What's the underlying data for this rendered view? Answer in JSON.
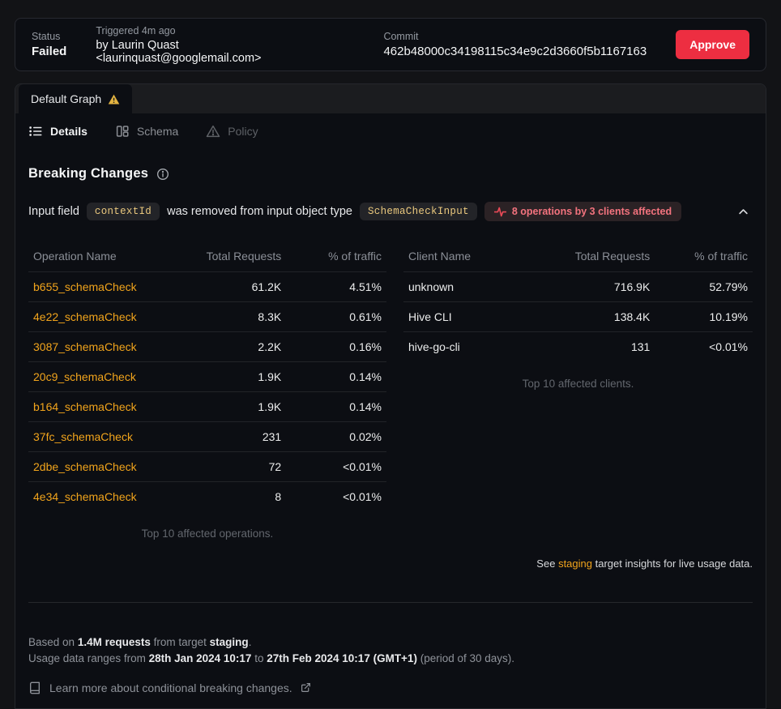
{
  "header": {
    "status_label": "Status",
    "status_value": "Failed",
    "triggered_label": "Triggered 4m ago",
    "triggered_value": "by Laurin Quast <laurinquast@googlemail.com>",
    "commit_label": "Commit",
    "commit_value": "462b48000c34198115c34e9c2d3660f5b1167163",
    "approve_label": "Approve"
  },
  "graph_tab": {
    "label": "Default Graph"
  },
  "subtabs": {
    "details": "Details",
    "schema": "Schema",
    "policy": "Policy"
  },
  "breaking": {
    "title": "Breaking Changes",
    "change": {
      "prefix": "Input field",
      "code_field": "contextId",
      "middle": "was removed from input object type",
      "code_type": "SchemaCheckInput",
      "affected_badge": "8 operations by 3 clients affected"
    }
  },
  "operations_table": {
    "headers": [
      "Operation Name",
      "Total Requests",
      "% of traffic"
    ],
    "rows": [
      [
        "b655_schemaCheck",
        "61.2K",
        "4.51%"
      ],
      [
        "4e22_schemaCheck",
        "8.3K",
        "0.61%"
      ],
      [
        "3087_schemaCheck",
        "2.2K",
        "0.16%"
      ],
      [
        "20c9_schemaCheck",
        "1.9K",
        "0.14%"
      ],
      [
        "b164_schemaCheck",
        "1.9K",
        "0.14%"
      ],
      [
        "37fc_schemaCheck",
        "231",
        "0.02%"
      ],
      [
        "2dbe_schemaCheck",
        "72",
        "<0.01%"
      ],
      [
        "4e34_schemaCheck",
        "8",
        "<0.01%"
      ]
    ],
    "caption": "Top 10 affected operations."
  },
  "clients_table": {
    "headers": [
      "Client Name",
      "Total Requests",
      "% of traffic"
    ],
    "rows": [
      [
        "unknown",
        "716.9K",
        "52.79%"
      ],
      [
        "Hive CLI",
        "138.4K",
        "10.19%"
      ],
      [
        "hive-go-cli",
        "131",
        "<0.01%"
      ]
    ],
    "caption": "Top 10 affected clients."
  },
  "insights_note": {
    "pre": "See",
    "link": "staging",
    "post": "target insights for live usage data."
  },
  "footer": {
    "based_prefix": "Based on",
    "requests": "1.4M requests",
    "from_target": "from target",
    "target": "staging",
    "period_sentence_prefix": "Usage data ranges from",
    "date_from": "28th Jan 2024 10:17",
    "to_word": "to",
    "date_to": "27th Feb 2024 10:17 (GMT+1)",
    "period_suffix": "(period of 30 days).",
    "learn_more": "Learn more about conditional breaking changes."
  },
  "colors": {
    "accent_orange": "#f1a41c",
    "approve_red": "#ed2e41",
    "affected_red": "#f3737e",
    "warning_yellow": "#e3b341",
    "code_gold": "#eac87e",
    "card_bg": "#0c0e13",
    "strip_bg": "#1b1c1f"
  }
}
